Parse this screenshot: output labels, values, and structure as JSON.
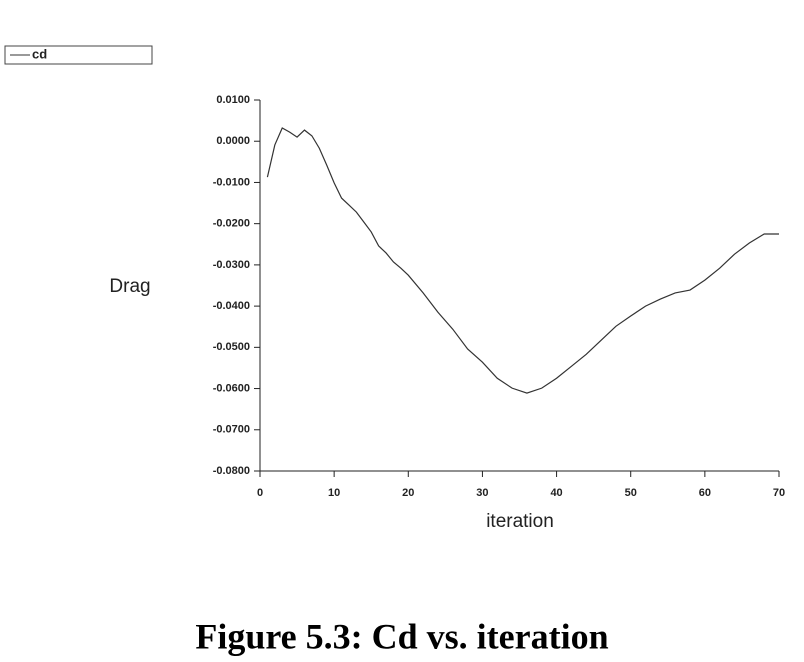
{
  "chart_data": {
    "type": "line",
    "caption": "Figure 5.3: Cd vs. iteration",
    "xlabel": "iteration",
    "ylabel": "Drag",
    "series": [
      {
        "name": "cd",
        "color": "#333333",
        "x": [
          1,
          2,
          3,
          4,
          5,
          6,
          7,
          8,
          9,
          10,
          11,
          12,
          13,
          14,
          15,
          16,
          17,
          18,
          19,
          20,
          22,
          24,
          26,
          28,
          30,
          32,
          34,
          36,
          38,
          40,
          42,
          44,
          46,
          48,
          50,
          52,
          54,
          56,
          58,
          60,
          62,
          64,
          66,
          68,
          70
        ],
        "values": [
          -0.0087,
          -0.0009,
          0.0032,
          0.0022,
          0.001,
          0.0027,
          0.0013,
          -0.0017,
          -0.0058,
          -0.0101,
          -0.0138,
          -0.0155,
          -0.0172,
          -0.0196,
          -0.022,
          -0.0254,
          -0.0271,
          -0.0293,
          -0.0308,
          -0.0325,
          -0.0368,
          -0.0415,
          -0.0456,
          -0.0504,
          -0.0536,
          -0.0575,
          -0.0599,
          -0.0611,
          -0.0599,
          -0.0575,
          -0.0546,
          -0.0517,
          -0.0483,
          -0.0449,
          -0.0424,
          -0.04,
          -0.0383,
          -0.0368,
          -0.0361,
          -0.0337,
          -0.0308,
          -0.0274,
          -0.0247,
          -0.0225,
          -0.0225
        ]
      }
    ],
    "xlim": [
      0,
      70
    ],
    "xticks": [
      0,
      10,
      20,
      30,
      40,
      50,
      60,
      70
    ],
    "ylim": [
      -0.08,
      0.01
    ],
    "yticks": [
      {
        "value": 0.01,
        "label": "0.0100"
      },
      {
        "value": 0,
        "label": "0.0000"
      },
      {
        "value": -0.01,
        "label": "-0.0100"
      },
      {
        "value": -0.02,
        "label": "-0.0200"
      },
      {
        "value": -0.03,
        "label": "-0.0300"
      },
      {
        "value": -0.04,
        "label": "-0.0400"
      },
      {
        "value": -0.05,
        "label": "-0.0500"
      },
      {
        "value": -0.06,
        "label": "-0.0600"
      },
      {
        "value": -0.07,
        "label": "-0.0700"
      },
      {
        "value": -0.08,
        "label": "-0.0800"
      }
    ],
    "grid": false,
    "legend": "top-left"
  }
}
